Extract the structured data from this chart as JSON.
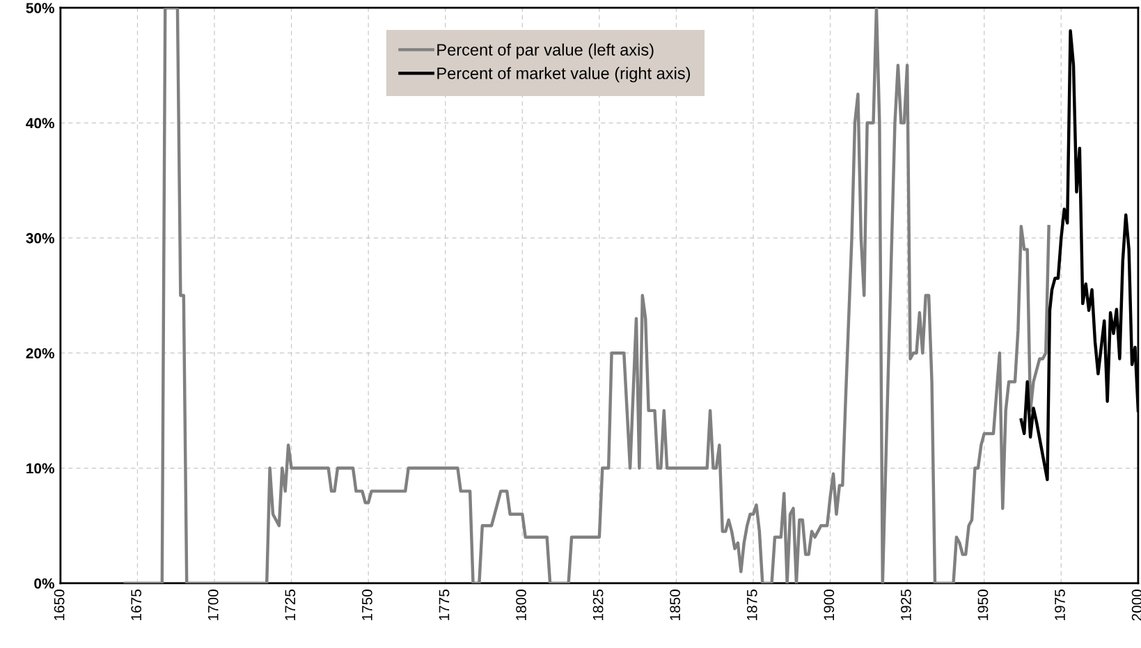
{
  "chart_data": {
    "type": "line",
    "series": [
      {
        "name": "Percent of par value (left axis)",
        "color": "#808080",
        "x": [
          1671,
          1683,
          1684,
          1688,
          1689,
          1690,
          1691,
          1717,
          1718,
          1719,
          1721,
          1722,
          1723,
          1724,
          1725,
          1737,
          1738,
          1739,
          1740,
          1745,
          1746,
          1748,
          1749,
          1750,
          1751,
          1762,
          1763,
          1779,
          1780,
          1783,
          1784,
          1786,
          1787,
          1790,
          1793,
          1795,
          1796,
          1800,
          1801,
          1808,
          1809,
          1815,
          1816,
          1825,
          1826,
          1828,
          1829,
          1833,
          1835,
          1837,
          1838,
          1839,
          1840,
          1841,
          1843,
          1844,
          1845,
          1846,
          1847,
          1860,
          1861,
          1862,
          1863,
          1864,
          1865,
          1866,
          1867,
          1868,
          1869,
          1870,
          1871,
          1872,
          1873,
          1874,
          1875,
          1876,
          1877,
          1878,
          1881,
          1882,
          1884,
          1885,
          1886,
          1887,
          1888,
          1889,
          1890,
          1891,
          1892,
          1893,
          1894,
          1895,
          1896,
          1897,
          1899,
          1900,
          1901,
          1902,
          1903,
          1904,
          1905,
          1907,
          1908,
          1909,
          1910,
          1911,
          1912,
          1914,
          1915,
          1916,
          1917,
          1919,
          1920,
          1921,
          1922,
          1923,
          1924,
          1925,
          1926,
          1927,
          1928,
          1929,
          1930,
          1931,
          1932,
          1933,
          1934,
          1940,
          1941,
          1942,
          1943,
          1944,
          1945,
          1946,
          1947,
          1948,
          1949,
          1950,
          1953,
          1955,
          1956,
          1957,
          1958,
          1960,
          1961,
          1962,
          1963,
          1964,
          1965,
          1966,
          1967,
          1968,
          1969,
          1970,
          1971
        ],
        "values": [
          0,
          0,
          50,
          50,
          25,
          25,
          0,
          0,
          10,
          6,
          5,
          10,
          8,
          12,
          10,
          10,
          8,
          8,
          10,
          10,
          8,
          8,
          7,
          7,
          8,
          8,
          10,
          10,
          8,
          8,
          0,
          0,
          5,
          5,
          8,
          8,
          6,
          6,
          4,
          4,
          0,
          0,
          4,
          4,
          10,
          10,
          20,
          20,
          10,
          23,
          10,
          25,
          23,
          15,
          15,
          10,
          10,
          15,
          10,
          10,
          15,
          10,
          10,
          12,
          4.5,
          4.5,
          5.5,
          4.5,
          3,
          3.5,
          1,
          3.5,
          5,
          6,
          6,
          6.8,
          4.5,
          0,
          0,
          4,
          4,
          7.8,
          0,
          6,
          6.5,
          0,
          5.5,
          5.5,
          2.5,
          2.5,
          4.5,
          4,
          4.5,
          5,
          5,
          7.5,
          9.5,
          6,
          8.5,
          8.5,
          16,
          30,
          40,
          42.5,
          30,
          25,
          40,
          40,
          50,
          40,
          0,
          20,
          30,
          40,
          45,
          40,
          40,
          45,
          19.5,
          20,
          20,
          23.5,
          20,
          25,
          25,
          17.5,
          0,
          0,
          4,
          3.5,
          2.5,
          2.5,
          5,
          5.5,
          10,
          10,
          12,
          13,
          13,
          20,
          6.5,
          15,
          17.5,
          17.5,
          22,
          31,
          29,
          29,
          15,
          17.5,
          18.5,
          19.5,
          19.5,
          20,
          31
        ]
      },
      {
        "name": "Percent of market value (right axis)",
        "color": "#000000",
        "x": [
          1962,
          1963,
          1964,
          1965,
          1966,
          1967,
          1970.5,
          1971.3,
          1972,
          1973,
          1974,
          1975,
          1976,
          1977,
          1978,
          1979,
          1980,
          1981,
          1982,
          1983,
          1984,
          1985,
          1986,
          1987,
          1988,
          1989,
          1990,
          1991,
          1992,
          1993,
          1994,
          1995,
          1996,
          1997,
          1998,
          1999,
          2000
        ],
        "values": [
          14.2,
          13,
          17.5,
          12.7,
          15.2,
          14,
          9,
          23.7,
          25.5,
          26.5,
          26.5,
          30,
          32.5,
          31.3,
          48,
          45,
          34,
          37.8,
          24.3,
          26,
          23.7,
          25.5,
          21,
          18.2,
          20.5,
          22.8,
          15.8,
          23.5,
          21.7,
          23.8,
          19.5,
          28,
          32,
          29,
          19,
          20.5,
          15
        ]
      }
    ],
    "xlim": [
      1650,
      2000
    ],
    "xticks": [
      1650,
      1675,
      1700,
      1725,
      1750,
      1775,
      1800,
      1825,
      1850,
      1875,
      1900,
      1925,
      1950,
      1975,
      2000
    ],
    "ylim": [
      0,
      50
    ],
    "yticks": [
      {
        "value": 0,
        "label": "0%"
      },
      {
        "value": 10,
        "label": "10%"
      },
      {
        "value": 20,
        "label": "20%"
      },
      {
        "value": 30,
        "label": "30%"
      },
      {
        "value": 40,
        "label": "40%"
      },
      {
        "value": 50,
        "label": "50%"
      }
    ],
    "grid": true,
    "legend": "top",
    "line_style": "solid",
    "marker": "none"
  }
}
